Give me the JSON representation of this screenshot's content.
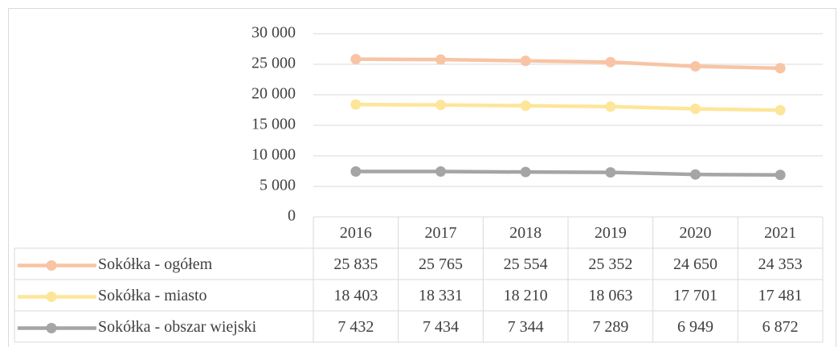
{
  "chart_data": {
    "type": "line",
    "categories": [
      "2016",
      "2017",
      "2018",
      "2019",
      "2020",
      "2021"
    ],
    "series": [
      {
        "name": "Sokółka - ogółem",
        "color": "#f8c4a4",
        "values": [
          25835,
          25765,
          25554,
          25352,
          24650,
          24353
        ],
        "value_labels": [
          "25 835",
          "25 765",
          "25 554",
          "25 352",
          "24 650",
          "24 353"
        ]
      },
      {
        "name": "Sokółka - miasto",
        "color": "#fde699",
        "values": [
          18403,
          18331,
          18210,
          18063,
          17701,
          17481
        ],
        "value_labels": [
          "18 403",
          "18 331",
          "18 210",
          "18 063",
          "17 701",
          "17 481"
        ]
      },
      {
        "name": "Sokółka - obszar wiejski",
        "color": "#a5a5a5",
        "values": [
          7432,
          7434,
          7344,
          7289,
          6949,
          6872
        ],
        "value_labels": [
          "7 432",
          "7 434",
          "7 344",
          "7 289",
          "6 949",
          "6 872"
        ]
      }
    ],
    "ylim": [
      0,
      30000
    ],
    "yticks": [
      0,
      {
        "value": 5000,
        "label": "5 000"
      },
      {
        "value": 10000,
        "label": "10 000"
      },
      {
        "value": 15000,
        "label": "15 000"
      },
      {
        "value": 20000,
        "label": "20 000"
      },
      {
        "value": 25000,
        "label": "25 000"
      },
      {
        "value": 30000,
        "label": "30 000"
      }
    ],
    "grid": true,
    "legend": "table"
  }
}
